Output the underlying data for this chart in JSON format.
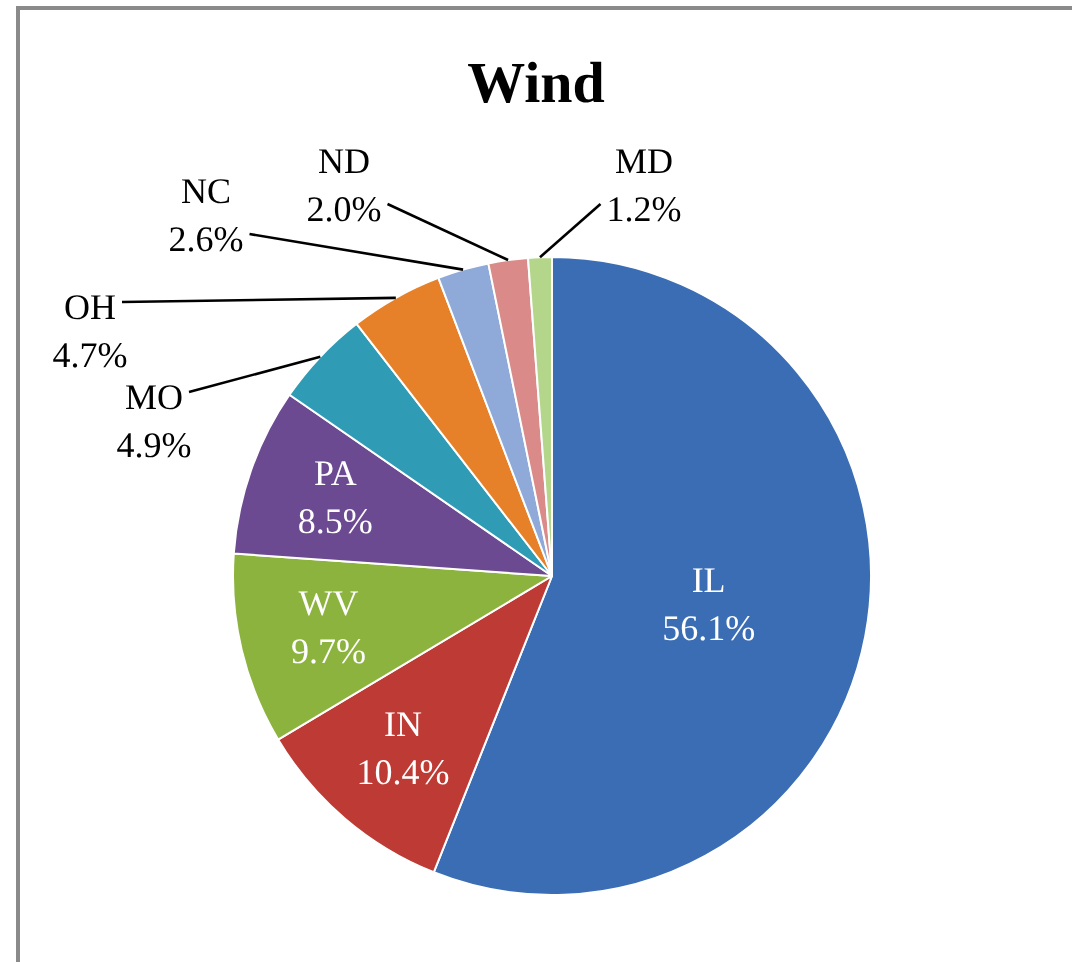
{
  "chart_data": {
    "type": "pie",
    "title": "Wind",
    "categories": [
      "IL",
      "IN",
      "WV",
      "PA",
      "MO",
      "OH",
      "NC",
      "ND",
      "MD"
    ],
    "values": [
      56.1,
      10.4,
      9.7,
      8.5,
      4.9,
      4.7,
      2.6,
      2.0,
      1.2
    ],
    "colors": [
      "#3a6db3",
      "#be3a34",
      "#8db33f",
      "#6b4a91",
      "#2f9bb5",
      "#e6812a",
      "#8faad9",
      "#d98a89",
      "#b4d68a"
    ],
    "value_labels": [
      "56.1%",
      "10.4%",
      "9.7%",
      "8.5%",
      "4.9%",
      "4.7%",
      "2.6%",
      "2.0%",
      "1.2%"
    ],
    "legend": false
  }
}
